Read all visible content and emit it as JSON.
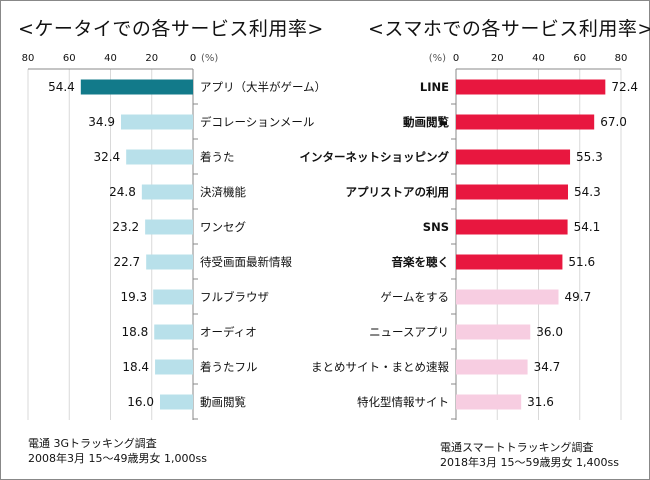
{
  "chart_data": [
    {
      "type": "bar",
      "orientation": "horizontal",
      "direction": "right-to-left",
      "title": "<ケータイでの各サービス利用率>",
      "unit_label": "(%)",
      "xlim": [
        0,
        80
      ],
      "ticks": [
        "0",
        "20",
        "40",
        "60",
        "80"
      ],
      "grid": true,
      "categories": [
        "アプリ（大半がゲーム）",
        "デコレーションメール",
        "着うた",
        "決済機能",
        "ワンセグ",
        "待受画面最新情報",
        "フルブラウザ",
        "オーディオ",
        "着うたフル",
        "動画閲覧"
      ],
      "values": [
        54.4,
        34.9,
        32.4,
        24.8,
        23.2,
        22.7,
        19.3,
        18.8,
        18.4,
        16.0
      ],
      "value_labels": [
        "54.4",
        "34.9",
        "32.4",
        "24.8",
        "23.2",
        "22.7",
        "19.3",
        "18.8",
        "18.4",
        "16.0"
      ],
      "colors": [
        "#127a8a",
        "#b8e0ea",
        "#b8e0ea",
        "#b8e0ea",
        "#b8e0ea",
        "#b8e0ea",
        "#b8e0ea",
        "#b8e0ea",
        "#b8e0ea",
        "#b8e0ea"
      ],
      "source": [
        "電通 3Gトラッキング調査",
        "2008年3月 15〜49歳男女 1,000ss"
      ]
    },
    {
      "type": "bar",
      "orientation": "horizontal",
      "direction": "left-to-right",
      "title": "<スマホでの各サービス利用率>",
      "unit_label": "(%)",
      "xlim": [
        0,
        80
      ],
      "ticks": [
        "0",
        "20",
        "40",
        "60",
        "80"
      ],
      "grid": true,
      "categories": [
        "LINE",
        "動画閲覧",
        "インターネットショッピング",
        "アプリストアの利用",
        "SNS",
        "音楽を聴く",
        "ゲームをする",
        "ニュースアプリ",
        "まとめサイト・まとめ速報",
        "特化型情報サイト"
      ],
      "values": [
        72.4,
        67.0,
        55.3,
        54.3,
        54.1,
        51.6,
        49.7,
        36.0,
        34.7,
        31.6
      ],
      "value_labels": [
        "72.4",
        "67.0",
        "55.3",
        "54.3",
        "54.1",
        "51.6",
        "49.7",
        "36.0",
        "34.7",
        "31.6"
      ],
      "colors": [
        "#e8173f",
        "#e8173f",
        "#e8173f",
        "#e8173f",
        "#e8173f",
        "#e8173f",
        "#f7cde1",
        "#f7cde1",
        "#f7cde1",
        "#f7cde1"
      ],
      "source": [
        "電通スマートトラッキング調査",
        "2018年3月 15〜59歳男女 1,400ss"
      ]
    }
  ]
}
